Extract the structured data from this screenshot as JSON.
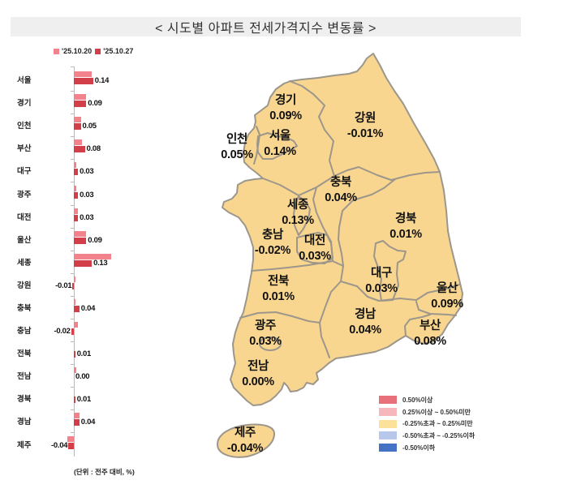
{
  "title": "< 시도별 아파트 전세가격지수 변동률 >",
  "chart_legend": [
    {
      "label": "'25.10.20",
      "color": "#f2828c"
    },
    {
      "label": "'25.10.27",
      "color": "#d33f48"
    }
  ],
  "unit_note": "(단위 : 전주 대비, %)",
  "chart_data": {
    "type": "bar",
    "orientation": "horizontal",
    "title": "시도별 아파트 전세가격지수 변동률",
    "xlabel": "",
    "ylabel": "",
    "unit": "전주 대비, %",
    "categories": [
      "서울",
      "경기",
      "인천",
      "부산",
      "대구",
      "광주",
      "대전",
      "울산",
      "세종",
      "강원",
      "충북",
      "충남",
      "전북",
      "전남",
      "경북",
      "경남",
      "제주"
    ],
    "series": [
      {
        "name": "'25.10.20",
        "color": "#f2828c",
        "values": [
          0.13,
          0.09,
          0.05,
          0.06,
          0.02,
          0.02,
          0.03,
          0.09,
          0.27,
          0.01,
          0.01,
          0.03,
          0.0,
          0.02,
          0.0,
          0.04,
          -0.05
        ]
      },
      {
        "name": "'25.10.27",
        "color": "#d33f48",
        "values": [
          0.14,
          0.09,
          0.05,
          0.08,
          0.03,
          0.03,
          0.03,
          0.09,
          0.13,
          -0.01,
          0.04,
          -0.02,
          0.01,
          0.0,
          0.01,
          0.04,
          -0.04
        ]
      }
    ],
    "data_labels": [
      "0.14",
      "0.09",
      "0.05",
      "0.08",
      "0.03",
      "0.03",
      "0.03",
      "0.09",
      "0.13",
      "-0.01",
      "0.04",
      "-0.02",
      "0.01",
      "0.00",
      "0.01",
      "0.04",
      "-0.04"
    ],
    "legend_position": "top",
    "grid": false
  },
  "map": {
    "fill_color": "#f9d690",
    "border_color": "#9c968b",
    "regions": [
      {
        "name": "경기",
        "value": "0.09%"
      },
      {
        "name": "강원",
        "value": "-0.01%"
      },
      {
        "name": "인천",
        "value": "0.05%"
      },
      {
        "name": "서울",
        "value": "0.14%"
      },
      {
        "name": "충북",
        "value": "0.04%"
      },
      {
        "name": "세종",
        "value": "0.13%"
      },
      {
        "name": "충남",
        "value": "-0.02%"
      },
      {
        "name": "대전",
        "value": "0.03%"
      },
      {
        "name": "경북",
        "value": "0.01%"
      },
      {
        "name": "대구",
        "value": "0.03%"
      },
      {
        "name": "울산",
        "value": "0.09%"
      },
      {
        "name": "전북",
        "value": "0.01%"
      },
      {
        "name": "경남",
        "value": "0.04%"
      },
      {
        "name": "부산",
        "value": "0.08%"
      },
      {
        "name": "광주",
        "value": "0.03%"
      },
      {
        "name": "전남",
        "value": "0.00%"
      },
      {
        "name": "제주",
        "value": "-0.04%"
      }
    ],
    "legend": [
      {
        "label": "0.50%이상",
        "color": "#e8707a"
      },
      {
        "label": "0.25%이상 ~ 0.50%미만",
        "color": "#f5b6bc"
      },
      {
        "label": "-0.25%초과 ~ 0.25%미만",
        "color": "#fce19a"
      },
      {
        "label": "-0.50%초과 ~ -0.25%이하",
        "color": "#b8c8ea"
      },
      {
        "label": "-0.50%이하",
        "color": "#4472c4"
      }
    ]
  }
}
